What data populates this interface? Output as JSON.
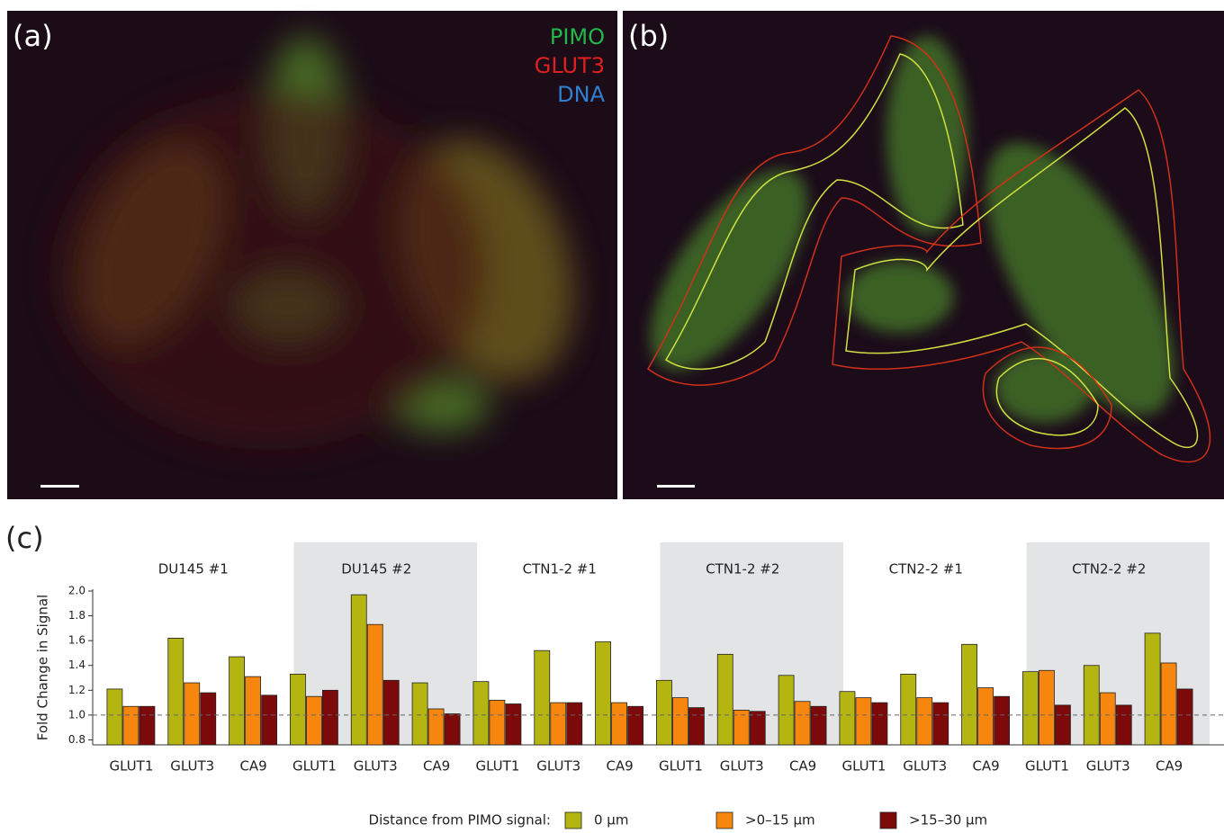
{
  "panels": {
    "a": "(a)",
    "b": "(b)",
    "c": "(c)",
    "stains": [
      "PIMO",
      "GLUT3",
      "DNA"
    ]
  },
  "chart_data": {
    "type": "bar",
    "y_label": "Fold Change in Signal",
    "groups": [
      "DU145 #1",
      "DU145 #2",
      "CTN1-2 #1",
      "CTN1-2 #2",
      "CTN2-2 #1",
      "CTN2-2 #2"
    ],
    "categories": [
      "GLUT1",
      "GLUT3",
      "CA9",
      "GLUT1",
      "GLUT3",
      "CA9",
      "GLUT1",
      "GLUT3",
      "CA9",
      "GLUT1",
      "GLUT3",
      "CA9",
      "GLUT1",
      "GLUT3",
      "CA9",
      "GLUT1",
      "GLUT3",
      "CA9"
    ],
    "legend_title": "Distance from PIMO signal:",
    "series": [
      {
        "name": "0 μm",
        "color": "#b5b512",
        "values": [
          1.21,
          1.62,
          1.47,
          1.33,
          1.97,
          1.26,
          1.27,
          1.52,
          1.59,
          1.28,
          1.49,
          1.32,
          1.19,
          1.33,
          1.57,
          1.35,
          1.4,
          1.66
        ]
      },
      {
        "name": ">0–15 μm",
        "color": "#f7860f",
        "values": [
          1.07,
          1.26,
          1.31,
          1.15,
          1.73,
          1.05,
          1.12,
          1.1,
          1.1,
          1.14,
          1.04,
          1.11,
          1.14,
          1.14,
          1.22,
          1.36,
          1.18,
          1.42
        ]
      },
      {
        "name": ">15–30 μm",
        "color": "#7d0a0a",
        "values": [
          1.07,
          1.18,
          1.16,
          1.2,
          1.28,
          1.01,
          1.09,
          1.1,
          1.07,
          1.06,
          1.03,
          1.07,
          1.1,
          1.1,
          1.15,
          1.08,
          1.08,
          1.21
        ]
      }
    ],
    "ylim": [
      0.76,
      2.0
    ],
    "yticks": [
      0.8,
      {
        "value": 1,
        "label": "1.0"
      },
      1.2,
      1.4,
      1.6,
      1.8,
      {
        "value": 2,
        "label": "2.0"
      }
    ],
    "reference_line": 1
  }
}
